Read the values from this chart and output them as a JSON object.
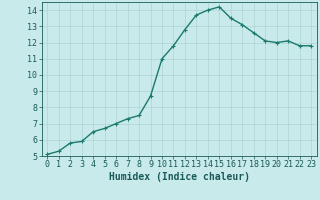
{
  "x": [
    0,
    1,
    2,
    3,
    4,
    5,
    6,
    7,
    8,
    9,
    10,
    11,
    12,
    13,
    14,
    15,
    16,
    17,
    18,
    19,
    20,
    21,
    22,
    23
  ],
  "y": [
    5.1,
    5.3,
    5.8,
    5.9,
    6.5,
    6.7,
    7.0,
    7.3,
    7.5,
    8.7,
    11.0,
    11.8,
    12.8,
    13.7,
    14.0,
    14.2,
    13.5,
    13.1,
    12.6,
    12.1,
    12.0,
    12.1,
    11.8,
    11.8
  ],
  "line_color": "#1a7a6e",
  "marker": "+",
  "marker_size": 3,
  "bg_color": "#c8eaea",
  "grid_color": "#afd4d4",
  "xlabel": "Humidex (Indice chaleur)",
  "ylim": [
    5,
    14.5
  ],
  "xlim": [
    -0.5,
    23.5
  ],
  "yticks": [
    5,
    6,
    7,
    8,
    9,
    10,
    11,
    12,
    13,
    14
  ],
  "xticks": [
    0,
    1,
    2,
    3,
    4,
    5,
    6,
    7,
    8,
    9,
    10,
    11,
    12,
    13,
    14,
    15,
    16,
    17,
    18,
    19,
    20,
    21,
    22,
    23
  ],
  "linewidth": 1.0,
  "font_color": "#1a5a5a",
  "xlabel_fontsize": 7,
  "tick_fontsize": 6
}
